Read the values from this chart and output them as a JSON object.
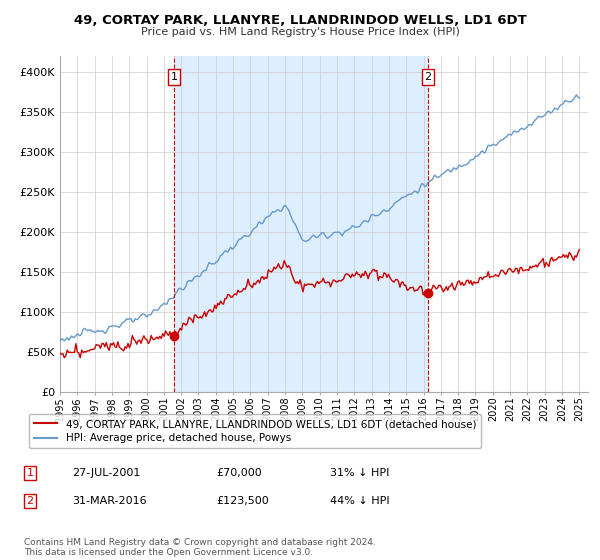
{
  "title": "49, CORTAY PARK, LLANYRE, LLANDRINDOD WELLS, LD1 6DT",
  "subtitle": "Price paid vs. HM Land Registry's House Price Index (HPI)",
  "ylim": [
    0,
    420000
  ],
  "yticks": [
    0,
    50000,
    100000,
    150000,
    200000,
    250000,
    300000,
    350000,
    400000
  ],
  "ytick_labels": [
    "£0",
    "£50K",
    "£100K",
    "£150K",
    "£200K",
    "£250K",
    "£300K",
    "£350K",
    "£400K"
  ],
  "legend_label_red": "49, CORTAY PARK, LLANYRE, LLANDRINDOD WELLS, LD1 6DT (detached house)",
  "legend_label_blue": "HPI: Average price, detached house, Powys",
  "marker1_date_str": "27-JUL-2001",
  "marker1_price": 70000,
  "marker1_hpi_pct": "31% ↓ HPI",
  "marker2_date_str": "31-MAR-2016",
  "marker2_price": 123500,
  "marker2_hpi_pct": "44% ↓ HPI",
  "footer": "Contains HM Land Registry data © Crown copyright and database right 2024.\nThis data is licensed under the Open Government Licence v3.0.",
  "red_color": "#cc0000",
  "blue_color": "#6699cc",
  "fill_color": "#ddeeff",
  "vline_color": "#cc0000",
  "background_color": "#ffffff",
  "grid_color": "#cccccc"
}
